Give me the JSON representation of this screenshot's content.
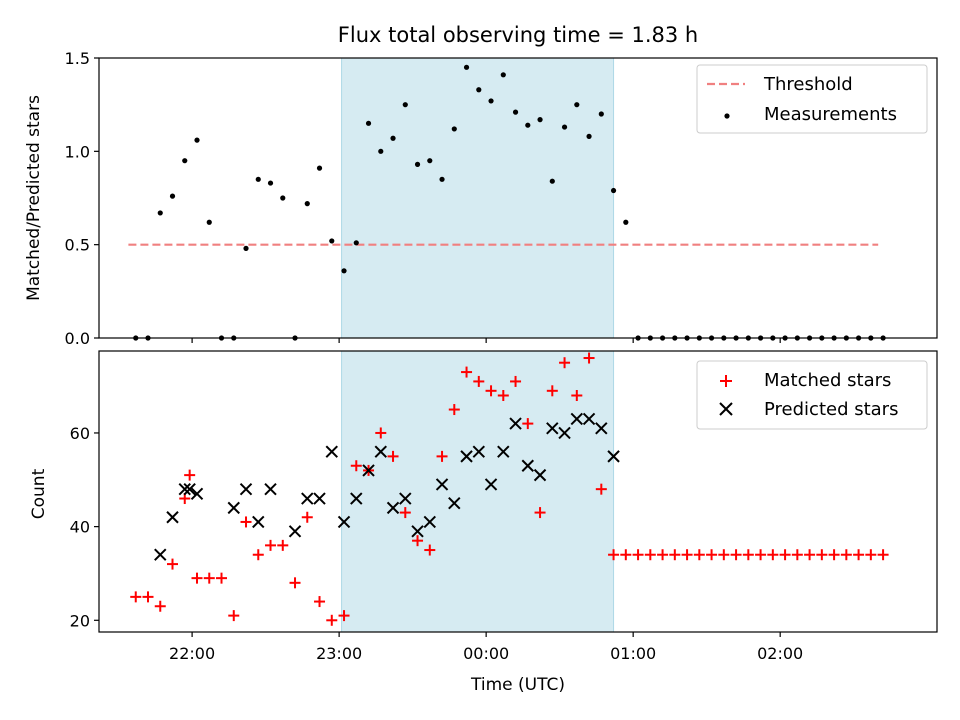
{
  "chart_data": [
    {
      "type": "scatter",
      "title": "Flux total observing time = 1.83 h",
      "xlabel": "",
      "ylabel": "Matched/Predicted stars",
      "ylim": [
        0,
        1.5
      ],
      "yticks": [
        "0.0",
        "0.5",
        "1.0",
        "1.5"
      ],
      "xlim": [
        "21:22",
        "03:04"
      ],
      "shaded_span": {
        "start": "23:01",
        "end": "00:52",
        "color": "#add8e6"
      },
      "threshold": {
        "name": "Threshold",
        "value": 0.5,
        "start": "21:34",
        "end": "02:40",
        "color": "#f08080"
      },
      "series": [
        {
          "name": "Measurements",
          "color": "#000000",
          "x": [
            "21:37",
            "21:42",
            "21:47",
            "21:52",
            "21:57",
            "22:02",
            "22:07",
            "22:12",
            "22:17",
            "22:22",
            "22:27",
            "22:32",
            "22:37",
            "22:42",
            "22:47",
            "22:52",
            "22:57",
            "23:02",
            "23:07",
            "23:12",
            "23:17",
            "23:22",
            "23:27",
            "23:32",
            "23:37",
            "23:42",
            "23:47",
            "23:52",
            "23:57",
            "00:02",
            "00:07",
            "00:12",
            "00:17",
            "00:22",
            "00:27",
            "00:32",
            "00:37",
            "00:42",
            "00:47",
            "00:52",
            "00:57",
            "01:02",
            "01:07",
            "01:12",
            "01:17",
            "01:22",
            "01:27",
            "01:32",
            "01:37",
            "01:42",
            "01:47",
            "01:52",
            "01:57",
            "02:02",
            "02:07",
            "02:12",
            "02:17",
            "02:22",
            "02:27",
            "02:32",
            "02:37",
            "02:42"
          ],
          "y": [
            0.0,
            0.0,
            0.67,
            0.76,
            0.95,
            1.06,
            0.62,
            0.0,
            0.0,
            0.48,
            0.85,
            0.83,
            0.75,
            0.0,
            0.72,
            0.91,
            0.52,
            0.36,
            0.51,
            1.15,
            1.0,
            1.07,
            1.25,
            0.93,
            0.95,
            0.85,
            1.12,
            1.45,
            1.33,
            1.27,
            1.41,
            1.21,
            1.14,
            1.17,
            0.84,
            1.13,
            1.25,
            1.08,
            1.2,
            0.79,
            0.62,
            0.0,
            0.0,
            0.0,
            0.0,
            0.0,
            0.0,
            0.0,
            0.0,
            0.0,
            0.0,
            0.0,
            0.0,
            0.0,
            0.0,
            0.0,
            0.0,
            0.0,
            0.0,
            0.0,
            0.0,
            0.0
          ]
        }
      ]
    },
    {
      "type": "scatter",
      "title": "",
      "xlabel": "Time (UTC)",
      "ylabel": "Count",
      "ylim": [
        17.5,
        77.5
      ],
      "yticks": [
        "20",
        "40",
        "60"
      ],
      "xticks": [
        "22:00",
        "23:00",
        "00:00",
        "01:00",
        "02:00"
      ],
      "xlim": [
        "21:22",
        "03:04"
      ],
      "shaded_span": {
        "start": "23:01",
        "end": "00:52",
        "color": "#add8e6"
      },
      "series": [
        {
          "name": "Matched stars",
          "marker": "+",
          "color": "#ff0000",
          "x": [
            "21:37",
            "21:42",
            "21:47",
            "21:52",
            "21:57",
            "21:59",
            "22:02",
            "22:07",
            "22:12",
            "22:17",
            "22:22",
            "22:27",
            "22:32",
            "22:37",
            "22:42",
            "22:47",
            "22:52",
            "22:57",
            "23:02",
            "23:07",
            "23:12",
            "23:17",
            "23:22",
            "23:27",
            "23:32",
            "23:37",
            "23:42",
            "23:47",
            "23:52",
            "23:57",
            "00:02",
            "00:07",
            "00:12",
            "00:17",
            "00:22",
            "00:27",
            "00:32",
            "00:37",
            "00:42",
            "00:47",
            "00:52",
            "00:57",
            "01:02",
            "01:07",
            "01:12",
            "01:17",
            "01:22",
            "01:27",
            "01:32",
            "01:37",
            "01:42",
            "01:47",
            "01:52",
            "01:57",
            "02:02",
            "02:07",
            "02:12",
            "02:17",
            "02:22",
            "02:27",
            "02:32",
            "02:37",
            "02:42"
          ],
          "y": [
            25,
            25,
            23,
            32,
            46,
            51,
            29,
            29,
            29,
            21,
            41,
            34,
            36,
            36,
            28,
            42,
            24,
            20,
            21,
            53,
            52,
            60,
            55,
            43,
            37,
            35,
            55,
            65,
            73,
            71,
            69,
            68,
            71,
            62,
            43,
            69,
            75,
            68,
            76,
            48,
            34,
            34,
            34,
            34,
            34,
            34,
            34,
            34,
            34,
            34,
            34,
            34,
            34,
            34,
            34,
            34,
            34,
            34,
            34,
            34,
            34,
            34,
            34
          ]
        },
        {
          "name": "Predicted stars",
          "marker": "x",
          "color": "#000000",
          "x": [
            "21:47",
            "21:52",
            "21:57",
            "21:59",
            "22:02",
            "22:17",
            "22:22",
            "22:27",
            "22:32",
            "22:42",
            "22:47",
            "22:52",
            "22:57",
            "23:02",
            "23:07",
            "23:12",
            "23:17",
            "23:22",
            "23:27",
            "23:32",
            "23:37",
            "23:42",
            "23:47",
            "23:52",
            "23:57",
            "00:02",
            "00:07",
            "00:12",
            "00:17",
            "00:22",
            "00:27",
            "00:32",
            "00:37",
            "00:42",
            "00:47",
            "00:52"
          ],
          "y": [
            34,
            42,
            48,
            48,
            47,
            44,
            48,
            41,
            48,
            39,
            46,
            46,
            56,
            41,
            46,
            52,
            56,
            44,
            46,
            39,
            41,
            49,
            45,
            55,
            56,
            49,
            56,
            62,
            53,
            51,
            61,
            60,
            63,
            63,
            61,
            55
          ]
        }
      ]
    }
  ]
}
